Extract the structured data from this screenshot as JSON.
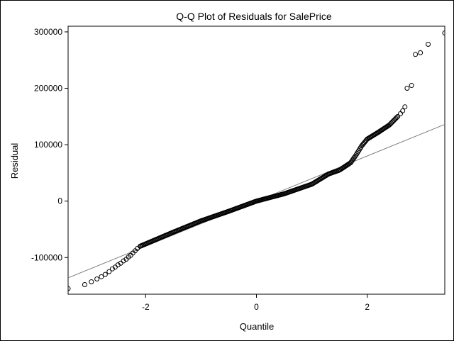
{
  "chart_data": {
    "type": "scatter",
    "title": "Q-Q Plot of Residuals for SalePrice",
    "xlabel": "Quantile",
    "ylabel": "Residual",
    "xlim": [
      -3.4,
      3.4
    ],
    "ylim": [
      -165000,
      310000
    ],
    "x_ticks": [
      -2,
      0,
      2
    ],
    "x_tick_labels": [
      "-2",
      "0",
      "2"
    ],
    "y_ticks": [
      -100000,
      0,
      100000,
      200000,
      300000
    ],
    "y_tick_labels": [
      "-100000",
      "0",
      "100000",
      "200000",
      "300000"
    ],
    "grid": false,
    "legend": "none",
    "colors": {
      "marker": "#000000",
      "reference_line": "#808080"
    },
    "reference_line": {
      "intercept": 0,
      "slope": 40000
    },
    "curve_knots": [
      [
        -2.1,
        -80000
      ],
      [
        -1.5,
        -55000
      ],
      [
        -1.0,
        -35000
      ],
      [
        -0.5,
        -18000
      ],
      [
        0.0,
        0
      ],
      [
        0.5,
        13000
      ],
      [
        1.0,
        30000
      ],
      [
        1.3,
        48000
      ],
      [
        1.5,
        55000
      ],
      [
        1.7,
        68000
      ],
      [
        1.8,
        82000
      ],
      [
        1.9,
        98000
      ],
      [
        2.0,
        110000
      ],
      [
        2.2,
        122000
      ],
      [
        2.4,
        135000
      ],
      [
        2.55,
        150000
      ]
    ],
    "points": [
      [
        -3.4,
        -155000
      ],
      [
        -3.1,
        -148000
      ],
      [
        -2.98,
        -143000
      ],
      [
        -2.88,
        -138000
      ],
      [
        -2.8,
        -134000
      ],
      [
        -2.73,
        -130000
      ],
      [
        -2.66,
        -125000
      ],
      [
        -2.6,
        -120000
      ],
      [
        -2.55,
        -117000
      ],
      [
        -2.5,
        -113000
      ],
      [
        -2.45,
        -110000
      ],
      [
        -2.4,
        -106000
      ],
      [
        -2.35,
        -103000
      ],
      [
        -2.31,
        -99000
      ],
      [
        -2.27,
        -96000
      ],
      [
        -2.23,
        -92000
      ],
      [
        -2.19,
        -88000
      ],
      [
        -2.15,
        -84000
      ],
      [
        2.6,
        155000
      ],
      [
        2.64,
        160000
      ],
      [
        2.68,
        167000
      ],
      [
        2.72,
        200000
      ],
      [
        2.8,
        205000
      ],
      [
        2.87,
        260000
      ],
      [
        2.96,
        263000
      ],
      [
        3.1,
        278000
      ],
      [
        3.4,
        298000
      ]
    ]
  }
}
